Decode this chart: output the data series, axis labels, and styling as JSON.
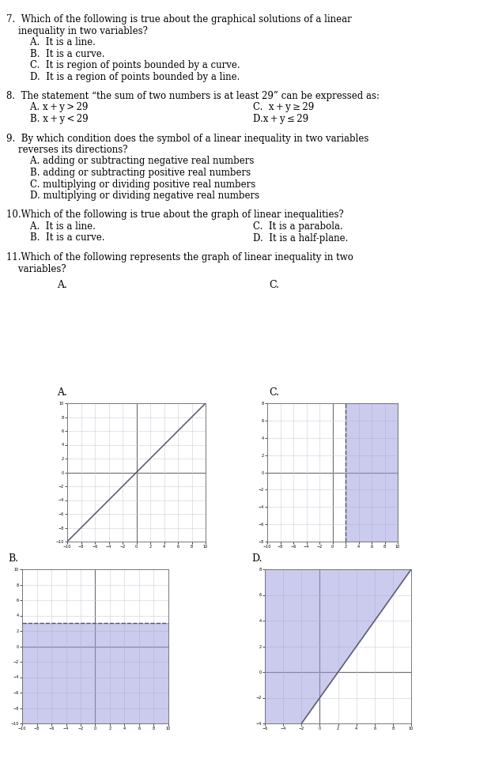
{
  "background_color": "#ffffff",
  "text_color": "#000000",
  "shading_color": "#9999dd",
  "shading_alpha": 0.5,
  "line_color": "#555566",
  "axis_color": "#000000",
  "grid_color": "#ccccdd",
  "font_size": 8.5,
  "questions": {
    "q7_title": "7.  Which of the following is true about the graphical solutions of a linear",
    "q7_cont": "    inequality in two variables?",
    "q7_a": "        A.  It is a line.",
    "q7_b": "        B.  It is a curve.",
    "q7_c": "        C.  It is region of points bounded by a curve.",
    "q7_d": "        D.  It is a region of points bounded by a line.",
    "q8_title": "8.  The statement “the sum of two numbers is at least 29” can be expressed as:",
    "q8_a": "        A. x + y > 29",
    "q8_c": "C.  x + y ≥ 29",
    "q8_b": "        B. x + y < 29",
    "q8_d": "D.x + y ≤ 29",
    "q9_title": "9.  By which condition does the symbol of a linear inequality in two variables",
    "q9_cont": "    reverses its directions?",
    "q9_a": "        A. adding or subtracting negative real numbers",
    "q9_b": "        B. adding or subtracting positive real numbers",
    "q9_c": "        C. multiplying or dividing positive real numbers",
    "q9_d": "        D. multiplying or dividing negative real numbers",
    "q10_title": "10.Which of the following is true about the graph of linear inequalities?",
    "q10_a": "        A.  It is a line.",
    "q10_c": "C.  It is a parabola.",
    "q10_b": "        B.  It is a curve.",
    "q10_d": "D.  It is a half-plane.",
    "q11_title": "11.Which of the following represents the graph of linear inequality in two",
    "q11_cont": "    variables?"
  }
}
